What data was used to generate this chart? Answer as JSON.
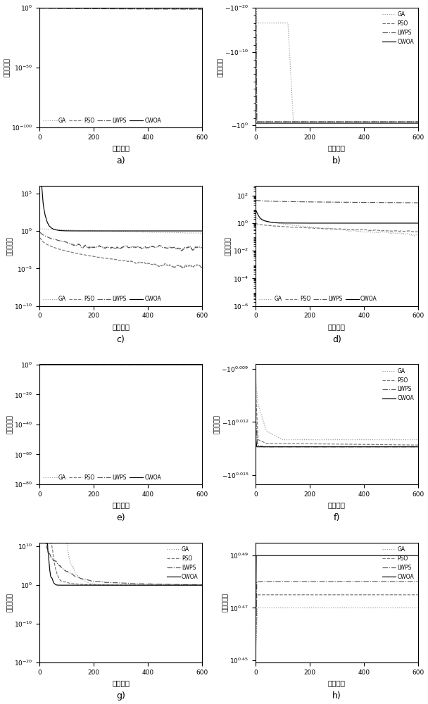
{
  "xlabel": "迭代次数",
  "ylabel": "目标函数值",
  "labels": [
    "a)",
    "b)",
    "c)",
    "d)",
    "e)",
    "f)",
    "g)",
    "h)"
  ]
}
